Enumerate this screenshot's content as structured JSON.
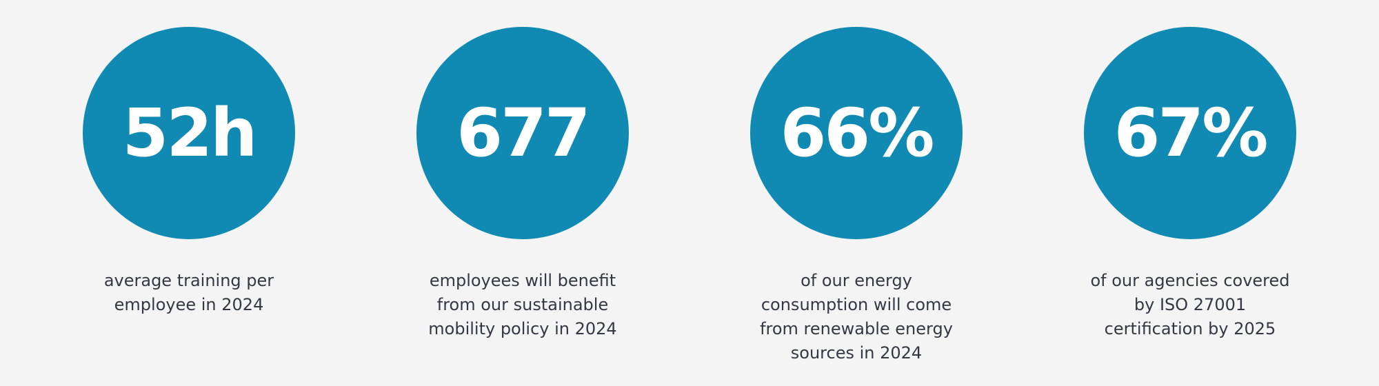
{
  "colors": {
    "background": "#f4f4f4",
    "circle": "#1089b3",
    "value_text": "#ffffff",
    "caption_text": "#333842"
  },
  "stats": [
    {
      "value": "52h",
      "caption": "average training per employee in 2024"
    },
    {
      "value": "677",
      "caption": "employees will benefit from our sustainable mobility policy in 2024"
    },
    {
      "value": "66%",
      "caption": "of our energy consumption will come from renewable energy sources in 2024"
    },
    {
      "value": "67%",
      "caption": "of our agencies covered by ISO 27001 certification by 2025"
    }
  ]
}
